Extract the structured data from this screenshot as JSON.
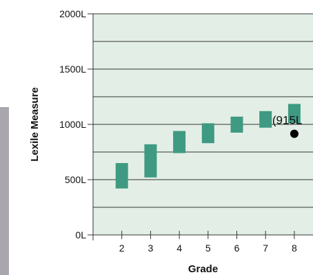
{
  "chart_data": {
    "type": "bar",
    "subtype": "floating-range",
    "xlabel": "Grade",
    "ylabel": "Lexile Measure",
    "categories": [
      "2",
      "3",
      "4",
      "5",
      "6",
      "7",
      "8"
    ],
    "ranges": [
      {
        "low": 420,
        "high": 650
      },
      {
        "low": 520,
        "high": 820
      },
      {
        "low": 740,
        "high": 940
      },
      {
        "low": 830,
        "high": 1010
      },
      {
        "low": 925,
        "high": 1070
      },
      {
        "low": 970,
        "high": 1120
      },
      {
        "low": 1010,
        "high": 1185
      }
    ],
    "ylim": [
      0,
      2000
    ],
    "yticks": [
      0,
      500,
      1000,
      1500,
      2000
    ],
    "ytick_labels": [
      "0L",
      "500L",
      "1000L",
      "1500L",
      "2000L"
    ],
    "grid": true,
    "marker_point": {
      "category": "8",
      "value": 915
    },
    "callout_label": "(915L",
    "colors": {
      "plot_background": "#e3efe6",
      "bar_fill": "#3f9a82",
      "grid_line": "#333333",
      "marker": "#000000"
    }
  }
}
